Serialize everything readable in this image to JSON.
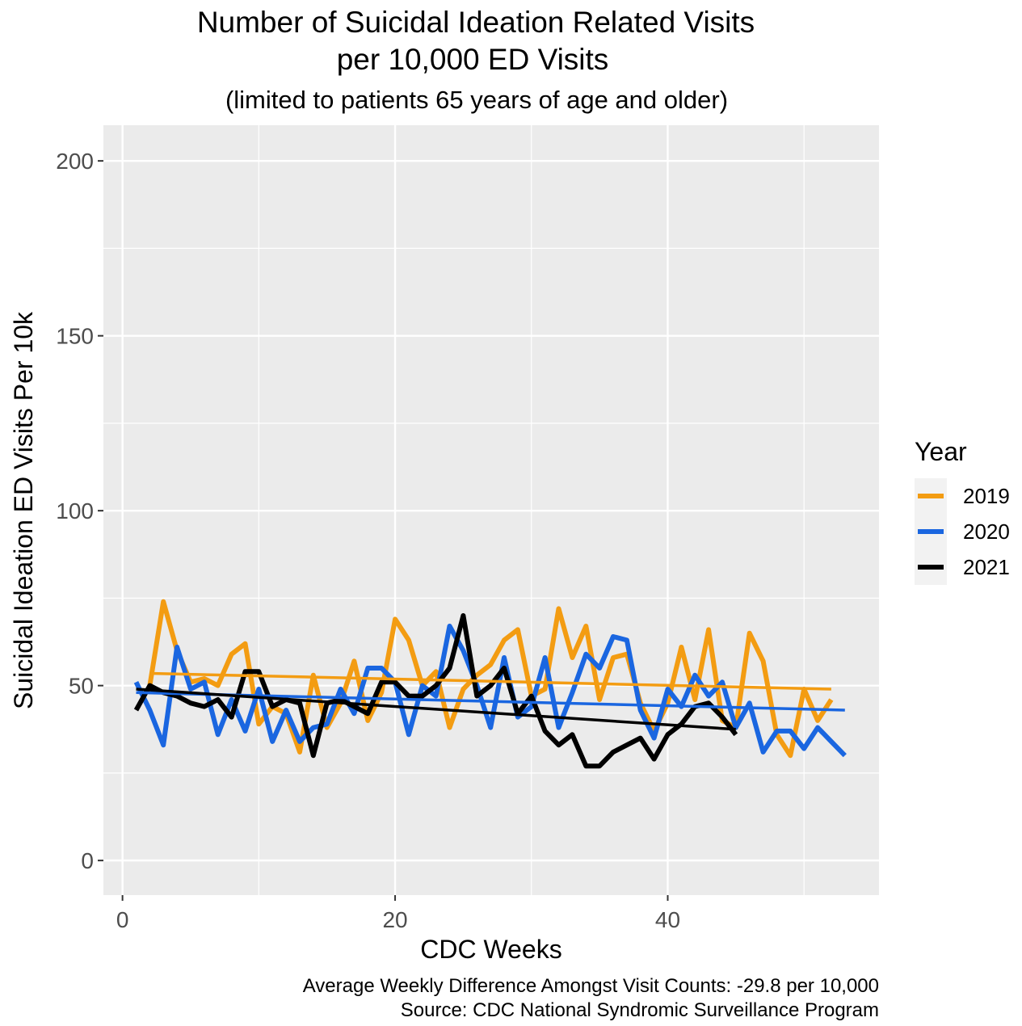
{
  "chart_data": {
    "type": "line",
    "title": [
      "Number of Suicidal Ideation Related Visits",
      "per 10,000 ED Visits"
    ],
    "subtitle": "(limited to patients 65 years of age and older)",
    "x_label": "CDC Weeks",
    "y_label": "Suicidal Ideation ED Visits Per 10k",
    "caption": [
      "Average Weekly Difference Amongst Visit Counts: -29.8 per 10,000",
      "Source: CDC National Syndromic Surveillance Program"
    ],
    "legend_title": "Year",
    "legend_position": "right",
    "grid": true,
    "xlim": [
      -1.4,
      55.5
    ],
    "ylim": [
      -9.9,
      210.2
    ],
    "xticks": [
      0,
      20,
      40
    ],
    "yticks": [
      0,
      50,
      100,
      150,
      200
    ],
    "minor_xticks": [
      10,
      30,
      50
    ],
    "minor_yticks": [
      25,
      75,
      125,
      175
    ],
    "series": [
      {
        "name": "2019",
        "color": "#f39c12",
        "x": [
          2,
          3,
          4,
          5,
          6,
          7,
          8,
          9,
          10,
          11,
          12,
          13,
          14,
          15,
          16,
          17,
          18,
          19,
          20,
          21,
          22,
          23,
          24,
          25,
          26,
          27,
          28,
          29,
          30,
          31,
          32,
          33,
          34,
          35,
          36,
          37,
          38,
          39,
          40,
          41,
          42,
          43,
          44,
          45,
          46,
          47,
          48,
          49,
          50,
          51,
          52
        ],
        "values": [
          50,
          74,
          60,
          51,
          52,
          50,
          59,
          62,
          39,
          44,
          42,
          31,
          53,
          38,
          45,
          57,
          40,
          48,
          69,
          63,
          50,
          54,
          38,
          49,
          53,
          56,
          63,
          66,
          47,
          49,
          72,
          58,
          67,
          46,
          58,
          59,
          45,
          37,
          45,
          61,
          46,
          66,
          40,
          38,
          65,
          57,
          36,
          30,
          49,
          40,
          46
        ],
        "trend": {
          "x": [
            2,
            52
          ],
          "values": [
            53.5,
            49
          ]
        }
      },
      {
        "name": "2020",
        "color": "#1a66e0",
        "x": [
          1,
          2,
          3,
          4,
          5,
          6,
          7,
          8,
          9,
          10,
          11,
          12,
          13,
          14,
          15,
          16,
          17,
          18,
          19,
          20,
          21,
          22,
          23,
          24,
          25,
          26,
          27,
          28,
          29,
          30,
          31,
          32,
          33,
          34,
          35,
          36,
          37,
          38,
          39,
          40,
          41,
          42,
          43,
          44,
          45,
          46,
          47,
          48,
          49,
          50,
          51,
          52,
          53
        ],
        "values": [
          51,
          43,
          33,
          61,
          49,
          51,
          36,
          46,
          37,
          49,
          34,
          43,
          34,
          38,
          39,
          49,
          42,
          55,
          55,
          51,
          36,
          50,
          47,
          67,
          60,
          50,
          38,
          58,
          41,
          44,
          58,
          38,
          48,
          59,
          55,
          64,
          63,
          43,
          35,
          49,
          44,
          53,
          47,
          51,
          38,
          45,
          31,
          37,
          37,
          32,
          38,
          34,
          30
        ],
        "trend": {
          "x": [
            1,
            53
          ],
          "values": [
            48,
            43
          ]
        }
      },
      {
        "name": "2021",
        "color": "#000000",
        "x": [
          1,
          2,
          3,
          4,
          5,
          6,
          7,
          8,
          9,
          10,
          11,
          12,
          13,
          14,
          15,
          16,
          17,
          18,
          19,
          20,
          21,
          22,
          23,
          24,
          25,
          26,
          27,
          28,
          29,
          30,
          31,
          32,
          33,
          34,
          35,
          36,
          37,
          38,
          39,
          40,
          41,
          42,
          43,
          44,
          45
        ],
        "values": [
          43,
          50,
          48,
          47,
          45,
          44,
          46,
          41,
          54,
          54,
          44,
          46,
          45,
          30,
          45,
          46,
          44,
          42,
          51,
          51,
          47,
          47,
          50,
          55,
          70,
          47,
          50,
          55,
          42,
          47,
          37,
          33,
          36,
          27,
          27,
          31,
          33,
          35,
          29,
          36,
          39,
          44,
          45,
          41,
          36
        ],
        "trend": {
          "x": [
            1,
            45
          ],
          "values": [
            49,
            37.5
          ]
        }
      }
    ]
  }
}
